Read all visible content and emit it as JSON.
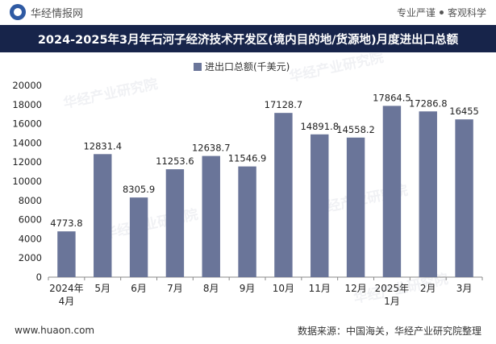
{
  "header": {
    "brand": "华经情报网",
    "tag1": "专业严谨",
    "tag2": "客观科学",
    "logo_icon": "circle-logo-icon"
  },
  "title": "2024-2025年3月年石河子经济技术开发区(境内目的地/货源地)月度进出口总额",
  "footer": {
    "website": "www.huaon.com",
    "source": "数据来源：中国海关，华经产业研究院整理"
  },
  "watermark": "华经产业研究院",
  "colors": {
    "bar": "#6a7599",
    "title_bg": "#17244a"
  },
  "chart_data": {
    "type": "bar",
    "categories": [
      "2024年\n4月",
      "5月",
      "6月",
      "7月",
      "8月",
      "9月",
      "10月",
      "11月",
      "12月",
      "2025年\n1月",
      "2月",
      "3月"
    ],
    "series": [
      {
        "name": "进出口总额(千美元)",
        "values": [
          4773.8,
          12831.4,
          8305.9,
          11253.6,
          12638.7,
          11546.9,
          17128.7,
          14891.8,
          14558.2,
          17864.5,
          17286.8,
          16455
        ],
        "labels": [
          "4773.8",
          "12831.4",
          "8305.9",
          "11253.6",
          "12638.7",
          "11546.9",
          "17128.7",
          "14891.8",
          "14558.2",
          "17864.5",
          "17286.8",
          "16455"
        ]
      }
    ],
    "yticks": [
      "0",
      "2000",
      "4000",
      "6000",
      "8000",
      "10000",
      "12000",
      "14000",
      "16000",
      "18000",
      "20000"
    ],
    "ylim": [
      0,
      20000
    ],
    "legend_position": "top-center",
    "grid": false
  }
}
